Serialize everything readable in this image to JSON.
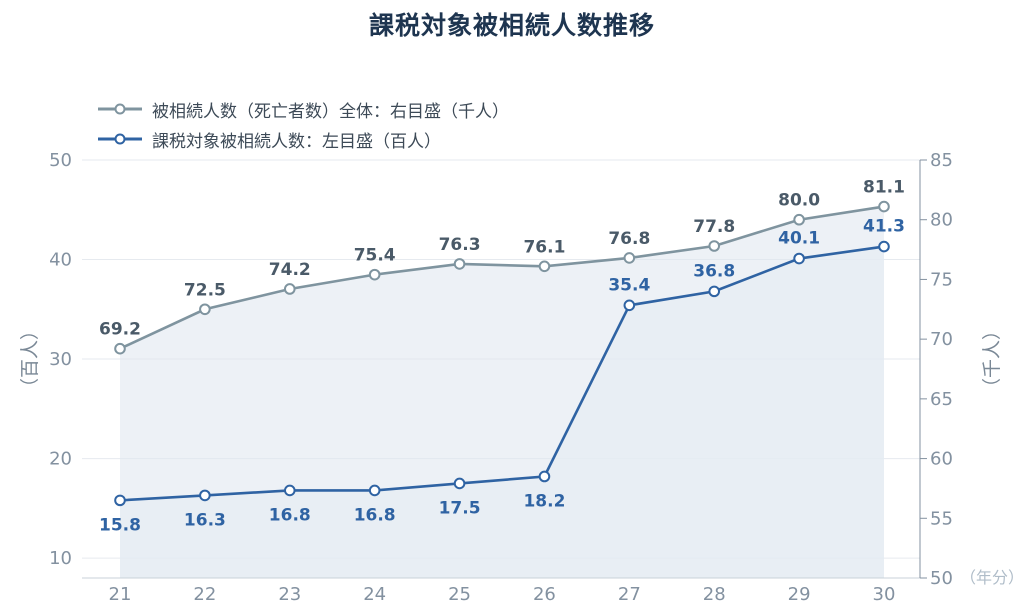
{
  "chart_data": {
    "type": "line",
    "title": "課税対象被相続人数推移",
    "categories": [
      "21",
      "22",
      "23",
      "24",
      "25",
      "26",
      "27",
      "28",
      "29",
      "30"
    ],
    "x_unit": "（年分）",
    "series": [
      {
        "name": "被相続人数（死亡者数）全体：右目盛（千人）",
        "axis": "right",
        "color": "#7f949f",
        "values": [
          69.2,
          72.5,
          74.2,
          75.4,
          76.3,
          76.1,
          76.8,
          77.8,
          80.0,
          81.1
        ],
        "labels": [
          "69.2",
          "72.5",
          "74.2",
          "75.4",
          "76.3",
          "76.1",
          "76.8",
          "77.8",
          "80.0",
          "81.1"
        ]
      },
      {
        "name": "課税対象被相続人数：左目盛（百人）",
        "axis": "left",
        "color": "#2f63a3",
        "values": [
          15.8,
          16.3,
          16.8,
          16.8,
          17.5,
          18.2,
          35.4,
          36.8,
          40.1,
          41.3
        ],
        "labels": [
          "15.8",
          "16.3",
          "16.8",
          "16.8",
          "17.5",
          "18.2",
          "35.4",
          "36.8",
          "40.1",
          "41.3"
        ]
      }
    ],
    "left_axis": {
      "label": "（百人）",
      "min": 8,
      "max": 50,
      "ticks": [
        "10",
        "20",
        "30",
        "40",
        "50"
      ]
    },
    "right_axis": {
      "label": "（千人）",
      "min": 50,
      "max": 85,
      "ticks": [
        "50",
        "55",
        "60",
        "65",
        "70",
        "75",
        "80",
        "85"
      ]
    },
    "grid": true,
    "legend_position": "top-left"
  }
}
